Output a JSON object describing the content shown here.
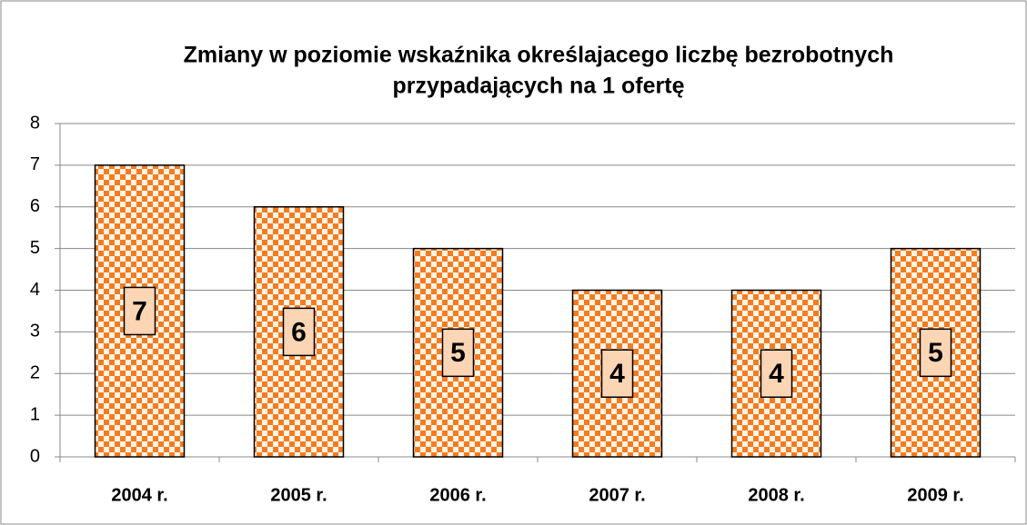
{
  "chart_data": {
    "type": "bar",
    "title": [
      "Zmiany w poziomie wskaźnika określajacego liczbę bezrobotnych",
      "przypadających na 1 ofertę"
    ],
    "categories": [
      "2004 r.",
      "2005 r.",
      "2006 r.",
      "2007 r.",
      "2008 r.",
      "2009 r."
    ],
    "values": [
      7,
      6,
      5,
      4,
      4,
      5
    ],
    "color": "#f47c20",
    "ylim": [
      0,
      8
    ],
    "yticks": [
      0,
      1,
      2,
      3,
      4,
      5,
      6,
      7,
      8
    ],
    "grid": true
  }
}
